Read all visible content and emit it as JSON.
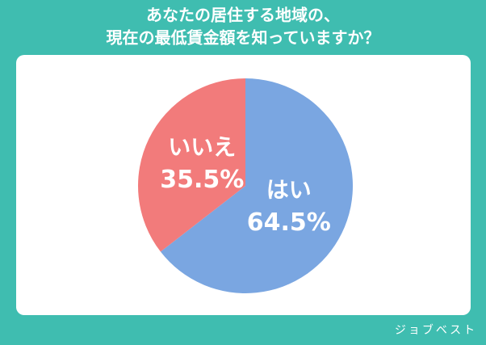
{
  "chart_data": {
    "type": "pie",
    "title": [
      "あなたの居住する地域の、",
      "現在の最低賃金額を知っていますか？"
    ],
    "categories": [
      "はい",
      "いいえ"
    ],
    "values": [
      64.5,
      35.5
    ],
    "value_labels": [
      "64.5%",
      "35.5%"
    ],
    "colors": [
      "#7aa6e1",
      "#f27b7b"
    ],
    "source": "ジョブベスト"
  }
}
